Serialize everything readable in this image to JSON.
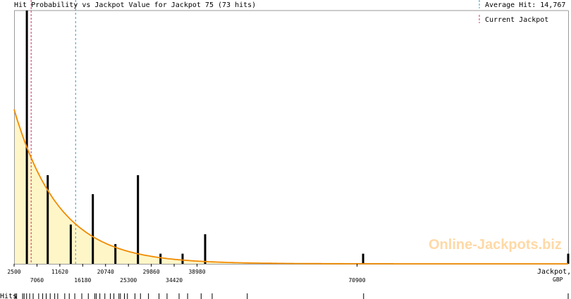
{
  "chart_data": {
    "type": "bar",
    "title": "Hit Probability vs Jackpot Value for Jackpot 75 (73 hits)",
    "xlabel": "Jackpot,",
    "xunit": "GBP",
    "hits_label": "Hits",
    "xlim": [
      2500,
      113000
    ],
    "ylim": [
      0,
      1
    ],
    "ticks_row1": [
      2500,
      11620,
      20740,
      29860,
      38980
    ],
    "ticks_row2": [
      7060,
      16180,
      25300,
      34420,
      70900
    ],
    "average_hit": 14767,
    "current_jackpot": 5900,
    "legend": [
      {
        "label": "Average Hit: 14,767",
        "color": "#3399cc",
        "style": "dashed"
      },
      {
        "label": "Current Jackpot",
        "color": "#cc3366",
        "style": "dashed"
      }
    ],
    "bars": [
      {
        "x": 5050,
        "value": 1.0
      },
      {
        "x": 9200,
        "value": 0.35
      },
      {
        "x": 13800,
        "value": 0.155
      },
      {
        "x": 18200,
        "value": 0.275
      },
      {
        "x": 22700,
        "value": 0.078
      },
      {
        "x": 27200,
        "value": 0.35
      },
      {
        "x": 31700,
        "value": 0.04
      },
      {
        "x": 36100,
        "value": 0.04
      },
      {
        "x": 40600,
        "value": 0.117
      },
      {
        "x": 72100,
        "value": 0.04
      },
      {
        "x": 113000,
        "value": 0.04
      }
    ],
    "curve": {
      "y0": 0.61,
      "decay_per_gbp": 0.0001107
    },
    "hits_x": [
      2700,
      3000,
      4200,
      4500,
      5000,
      5600,
      6300,
      7400,
      8200,
      8900,
      9700,
      10600,
      11200,
      12600,
      13500,
      14600,
      16000,
      17300,
      18600,
      18900,
      19600,
      20600,
      21700,
      22400,
      23400,
      23700,
      24500,
      25100,
      26600,
      27700,
      29300,
      31400,
      33000,
      35400,
      37100,
      39800,
      42000,
      49000,
      72200,
      113000
    ],
    "colors": {
      "curve": "#f08a00",
      "fill": "#fff6c8",
      "bar": "#000000",
      "avg": "#3399cc",
      "current": "#cc3366",
      "axis": "#9a9a9a"
    },
    "watermark": "Online-Jackpots.biz"
  }
}
